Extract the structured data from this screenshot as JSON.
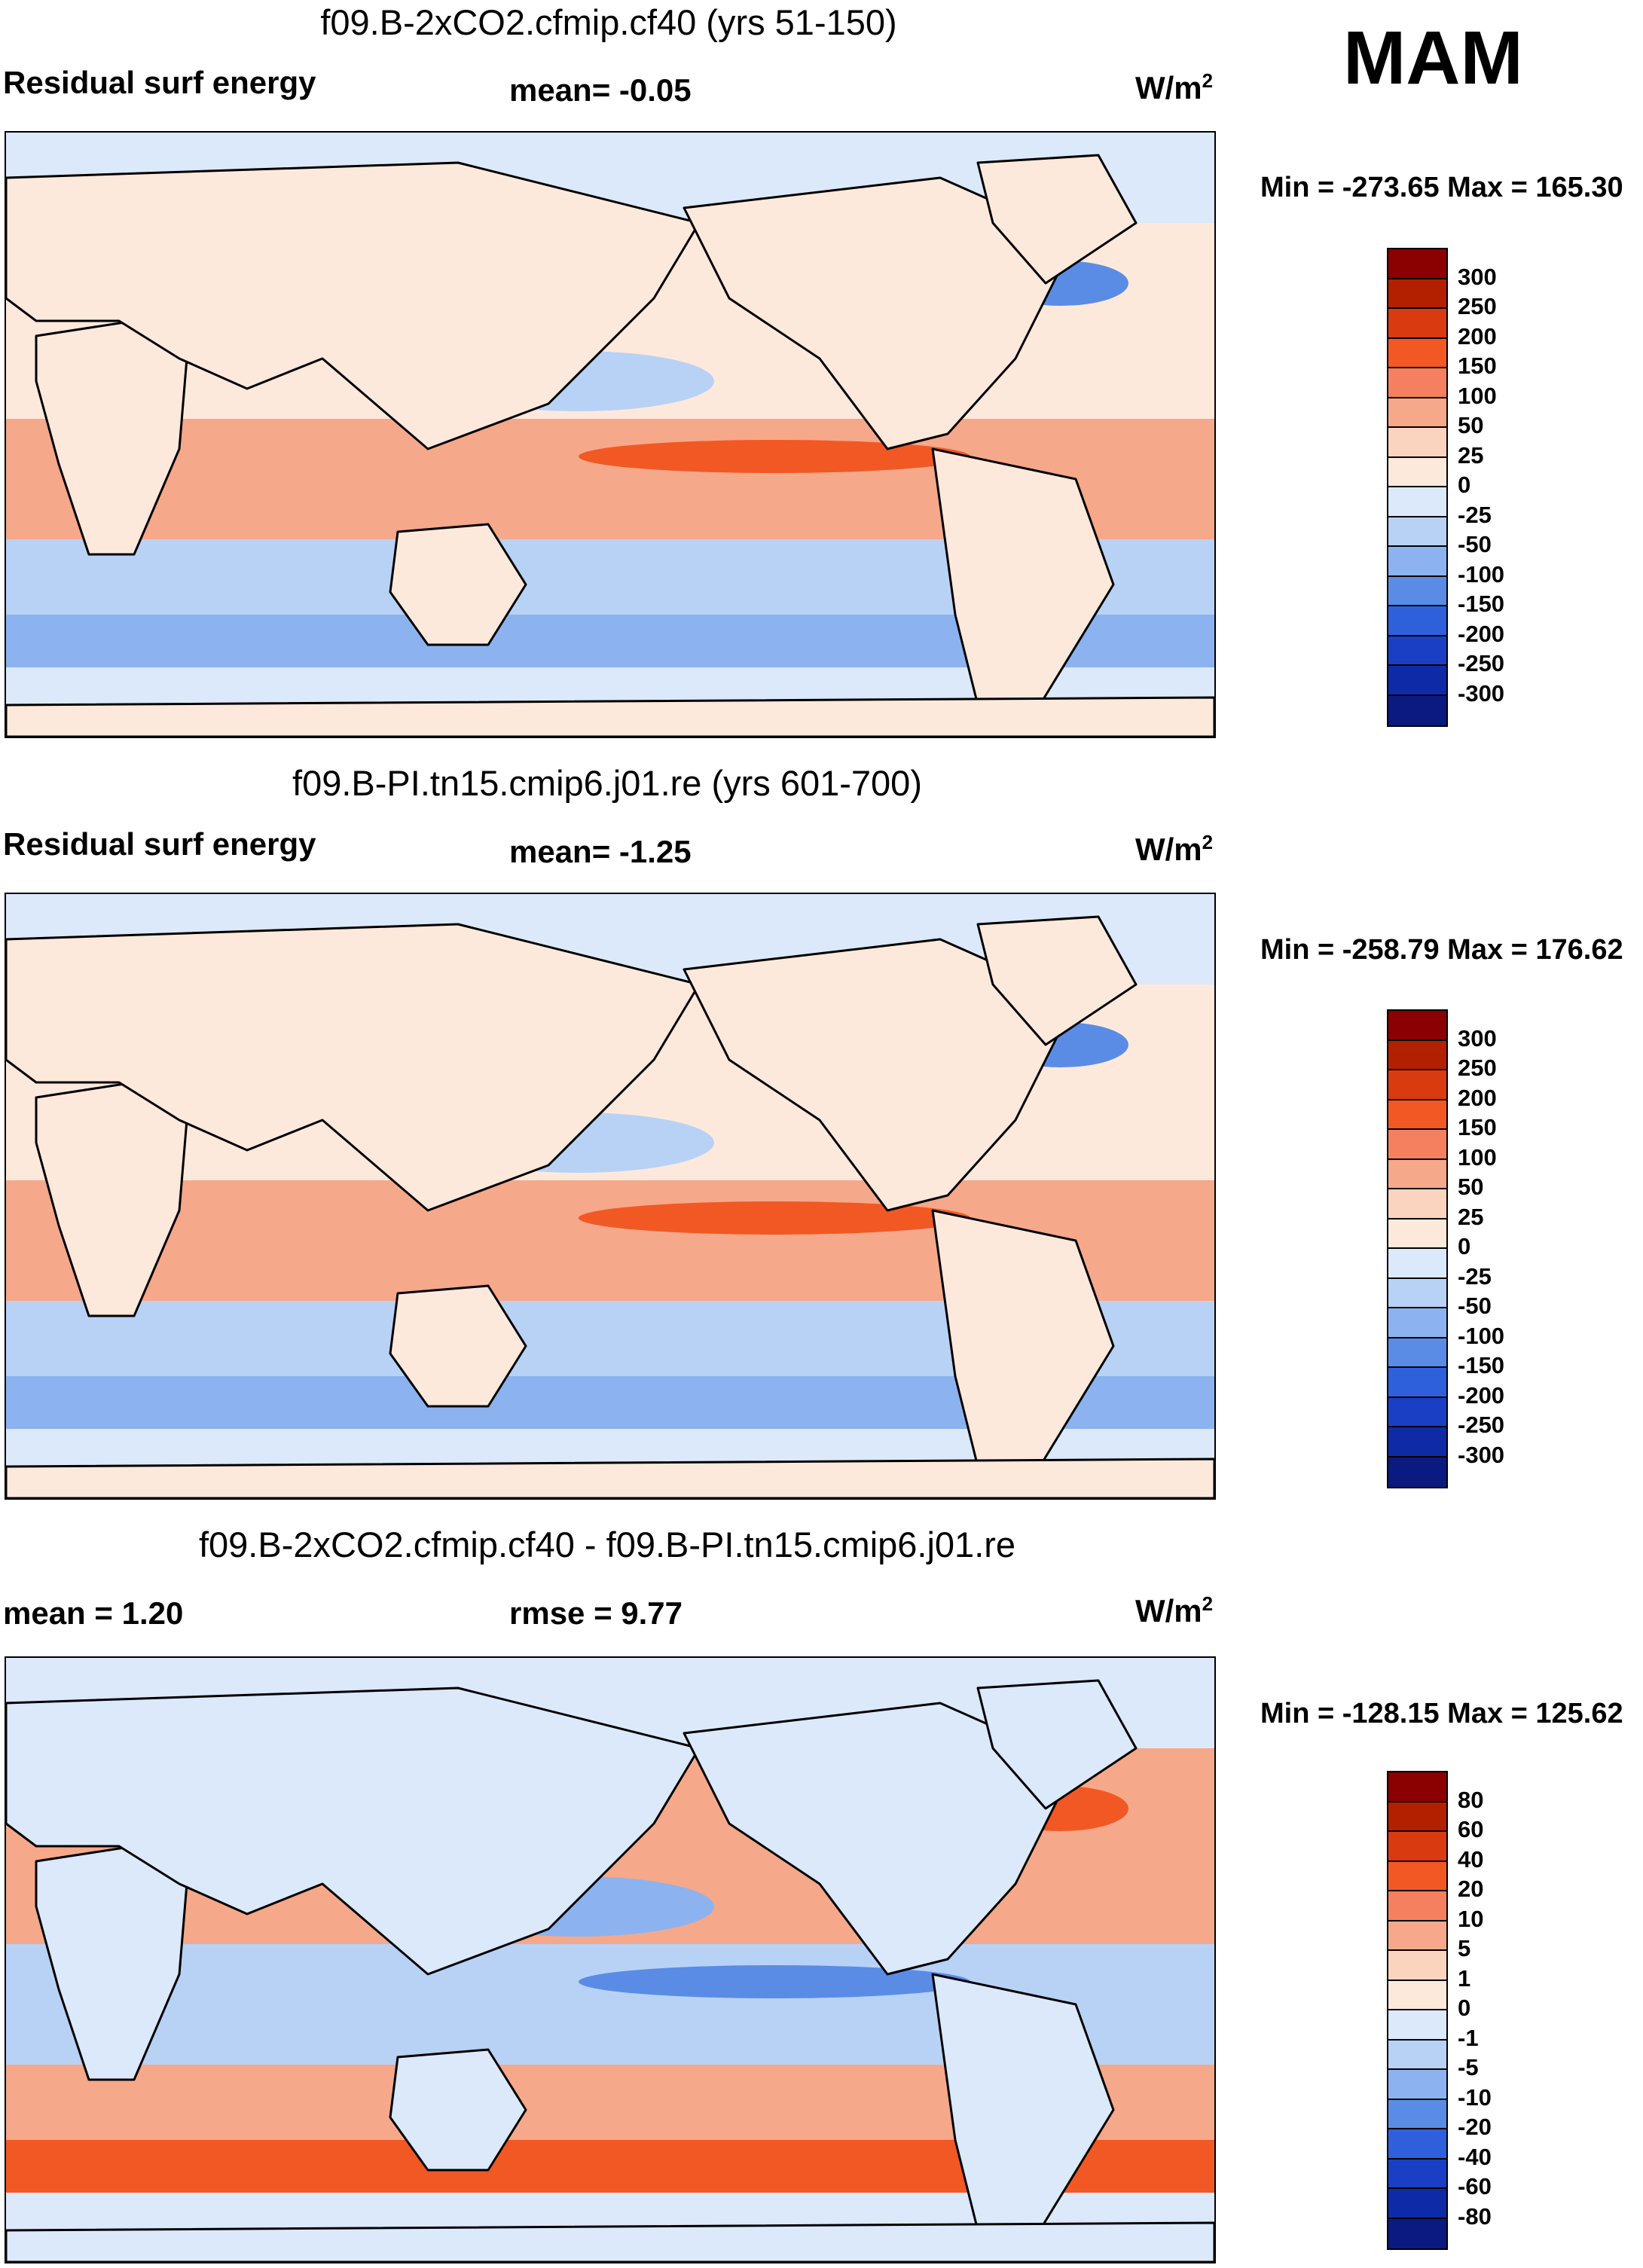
{
  "season": "MAM",
  "units_word": "W/m",
  "units_exp": "2",
  "panels": [
    {
      "title": "f09.B-2xCO2.cfmip.cf40 (yrs 51-150)",
      "left_label": "Residual surf energy",
      "center_label": "mean=  -0.05",
      "min_max": "Min = -273.65 Max = 165.30",
      "colorbar_ticks": [
        "300",
        "250",
        "200",
        "150",
        "100",
        "50",
        "25",
        "0",
        "-25",
        "-50",
        "-100",
        "-150",
        "-200",
        "-250",
        "-300"
      ],
      "colors": [
        "#8b0000",
        "#b22000",
        "#d93a10",
        "#f25824",
        "#f48060",
        "#f6a88a",
        "#fbd4c0",
        "#fde9dc",
        "#dbe9fb",
        "#b8d2f6",
        "#8cb3ef",
        "#5a8ce6",
        "#2f60dc",
        "#1a3fc4",
        "#0f2aa6",
        "#0a1a80"
      ]
    },
    {
      "title": "f09.B-PI.tn15.cmip6.j01.re (yrs 601-700)",
      "left_label": "Residual surf energy",
      "center_label": "mean=  -1.25",
      "min_max": "Min = -258.79 Max = 176.62",
      "colorbar_ticks": [
        "300",
        "250",
        "200",
        "150",
        "100",
        "50",
        "25",
        "0",
        "-25",
        "-50",
        "-100",
        "-150",
        "-200",
        "-250",
        "-300"
      ],
      "colors": [
        "#8b0000",
        "#b22000",
        "#d93a10",
        "#f25824",
        "#f48060",
        "#f6a88a",
        "#fbd4c0",
        "#fde9dc",
        "#dbe9fb",
        "#b8d2f6",
        "#8cb3ef",
        "#5a8ce6",
        "#2f60dc",
        "#1a3fc4",
        "#0f2aa6",
        "#0a1a80"
      ]
    },
    {
      "title": "f09.B-2xCO2.cfmip.cf40 - f09.B-PI.tn15.cmip6.j01.re",
      "left_label": "mean =   1.20",
      "center_label": "rmse =   9.77",
      "min_max": "Min = -128.15 Max = 125.62",
      "colorbar_ticks": [
        "80",
        "60",
        "40",
        "20",
        "10",
        "5",
        "1",
        "0",
        "-1",
        "-5",
        "-10",
        "-20",
        "-40",
        "-60",
        "-80"
      ],
      "colors": [
        "#8b0000",
        "#b22000",
        "#d93a10",
        "#f25824",
        "#f48060",
        "#f6a88a",
        "#fbd4c0",
        "#fde9dc",
        "#dbe9fb",
        "#b8d2f6",
        "#8cb3ef",
        "#5a8ce6",
        "#2f60dc",
        "#1a3fc4",
        "#0f2aa6",
        "#0a1a80"
      ]
    }
  ],
  "map_fills": {
    "land": "#fde9dc",
    "ocean_warm": "#f6a88a",
    "ocean_hot": "#f25824",
    "ocean_cool": "#b8d2f6",
    "ocean_cold": "#8cb3ef",
    "ocean_deep": "#5a8ce6",
    "polar": "#dbe9fb"
  }
}
